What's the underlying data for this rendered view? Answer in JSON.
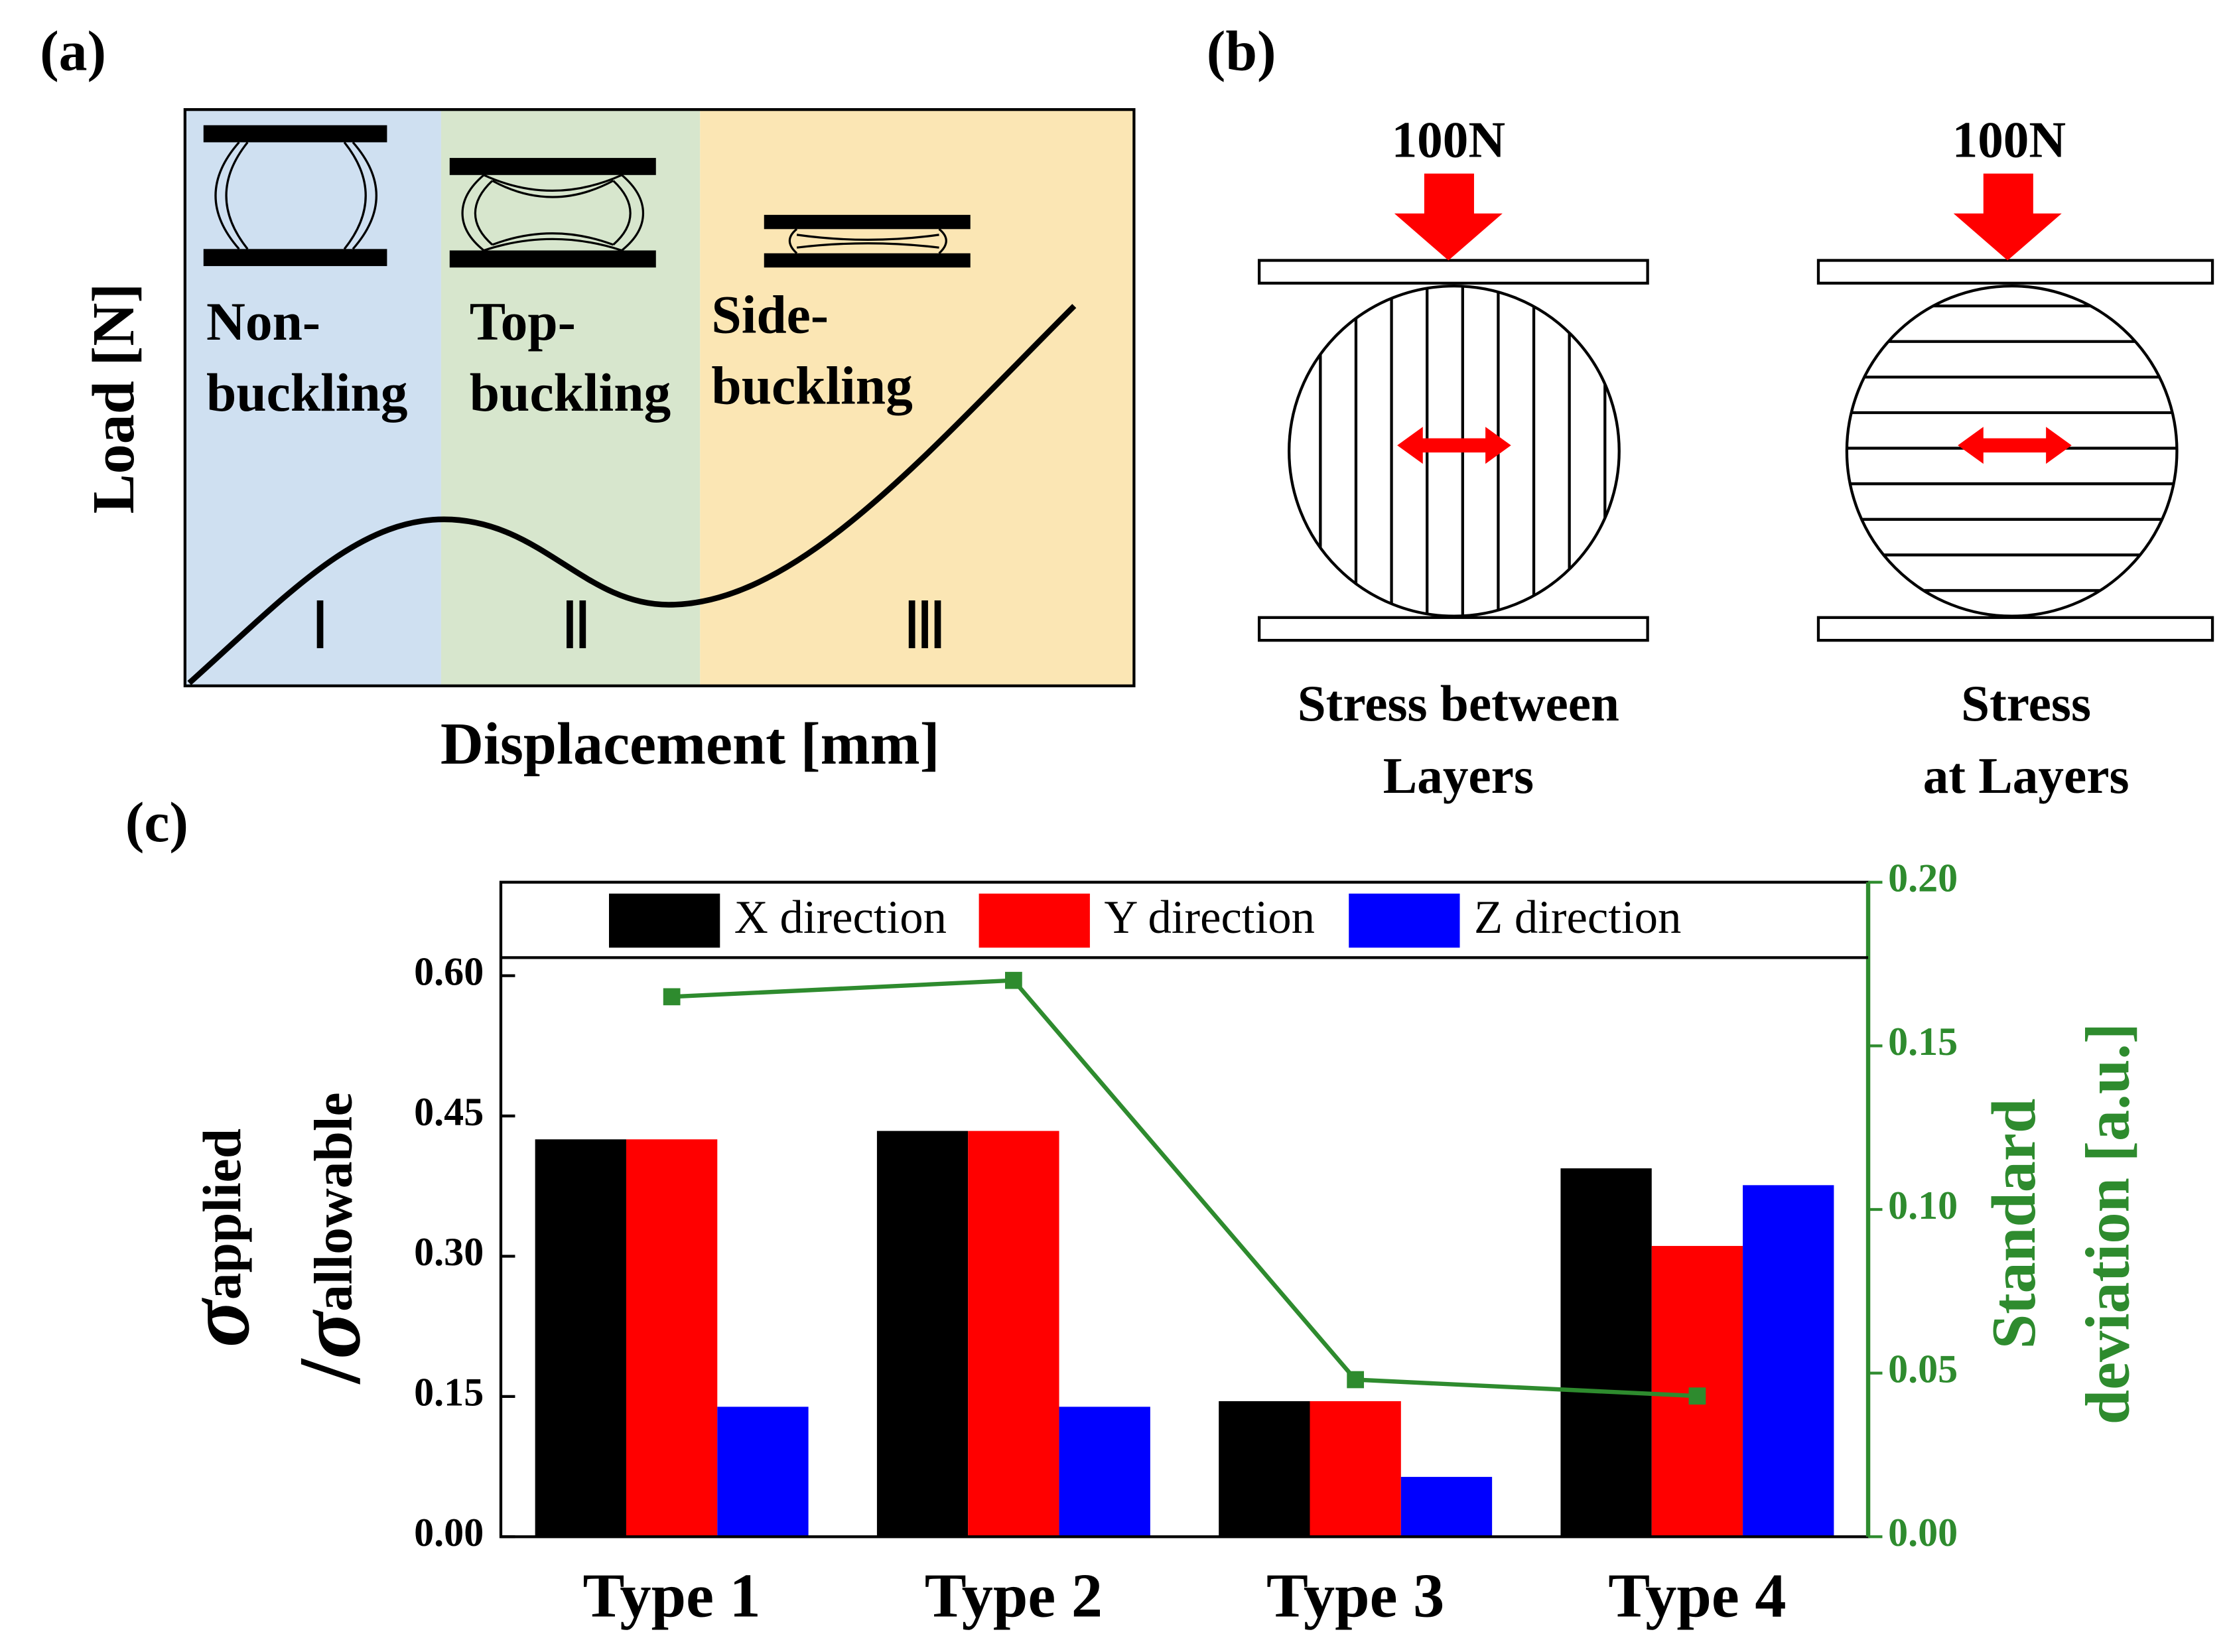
{
  "panel_a": {
    "label": "(a)",
    "ylabel": "Load [N]",
    "xlabel": "Displacement [mm]",
    "regions": [
      {
        "text": [
          "Non-",
          "buckling"
        ],
        "numeral": "Ⅰ"
      },
      {
        "text": [
          "Top-",
          "buckling"
        ],
        "numeral": "Ⅱ"
      },
      {
        "text": [
          "Side-",
          "buckling"
        ],
        "numeral": "Ⅲ"
      }
    ]
  },
  "panel_b": {
    "label": "(b)",
    "left": {
      "force": "100N",
      "caption": [
        "Stress between",
        "Layers"
      ]
    },
    "right": {
      "force": "100N",
      "caption": [
        "Stress",
        "at Layers"
      ]
    }
  },
  "panel_c": {
    "label": "(c)"
  },
  "chart_data": {
    "type": "bar",
    "categories": [
      "Type 1",
      "Type 2",
      "Type 3",
      "Type 4"
    ],
    "series": [
      {
        "name": "X direction",
        "color": "#000000",
        "values": [
          0.425,
          0.434,
          0.145,
          0.394
        ]
      },
      {
        "name": "Y direction",
        "color": "#ff0000",
        "values": [
          0.425,
          0.434,
          0.145,
          0.311
        ]
      },
      {
        "name": "Z direction",
        "color": "#0000ff",
        "values": [
          0.139,
          0.139,
          0.064,
          0.376
        ]
      },
      {
        "type": "line",
        "axis": "y2",
        "color": "#2e8b2e",
        "values": [
          0.165,
          0.17,
          0.048,
          0.043
        ]
      }
    ],
    "ylabel": [
      [
        "σ",
        "applied"
      ],
      [
        "/",
        "σ",
        "allowable"
      ]
    ],
    "y2label": [
      "Standard",
      "deviation [a.u.]"
    ],
    "ylim": [
      0,
      0.7
    ],
    "yticks": [
      {
        "value": 0,
        "label": "0.00"
      },
      {
        "value": 0.15,
        "label": "0.15"
      },
      {
        "value": 0.3,
        "label": "0.30"
      },
      {
        "value": 0.45,
        "label": "0.45"
      },
      {
        "value": 0.6,
        "label": "0.60"
      }
    ],
    "y2lim": [
      0,
      0.2
    ],
    "y2ticks": [
      {
        "value": 0,
        "label": "0.00"
      },
      {
        "value": 0.05,
        "label": "0.05"
      },
      {
        "value": 0.1,
        "label": "0.10"
      },
      {
        "value": 0.15,
        "label": "0.15"
      },
      {
        "value": 0.2,
        "label": "0.20"
      }
    ],
    "y2color": "#2e8b2e",
    "legend": "top"
  }
}
